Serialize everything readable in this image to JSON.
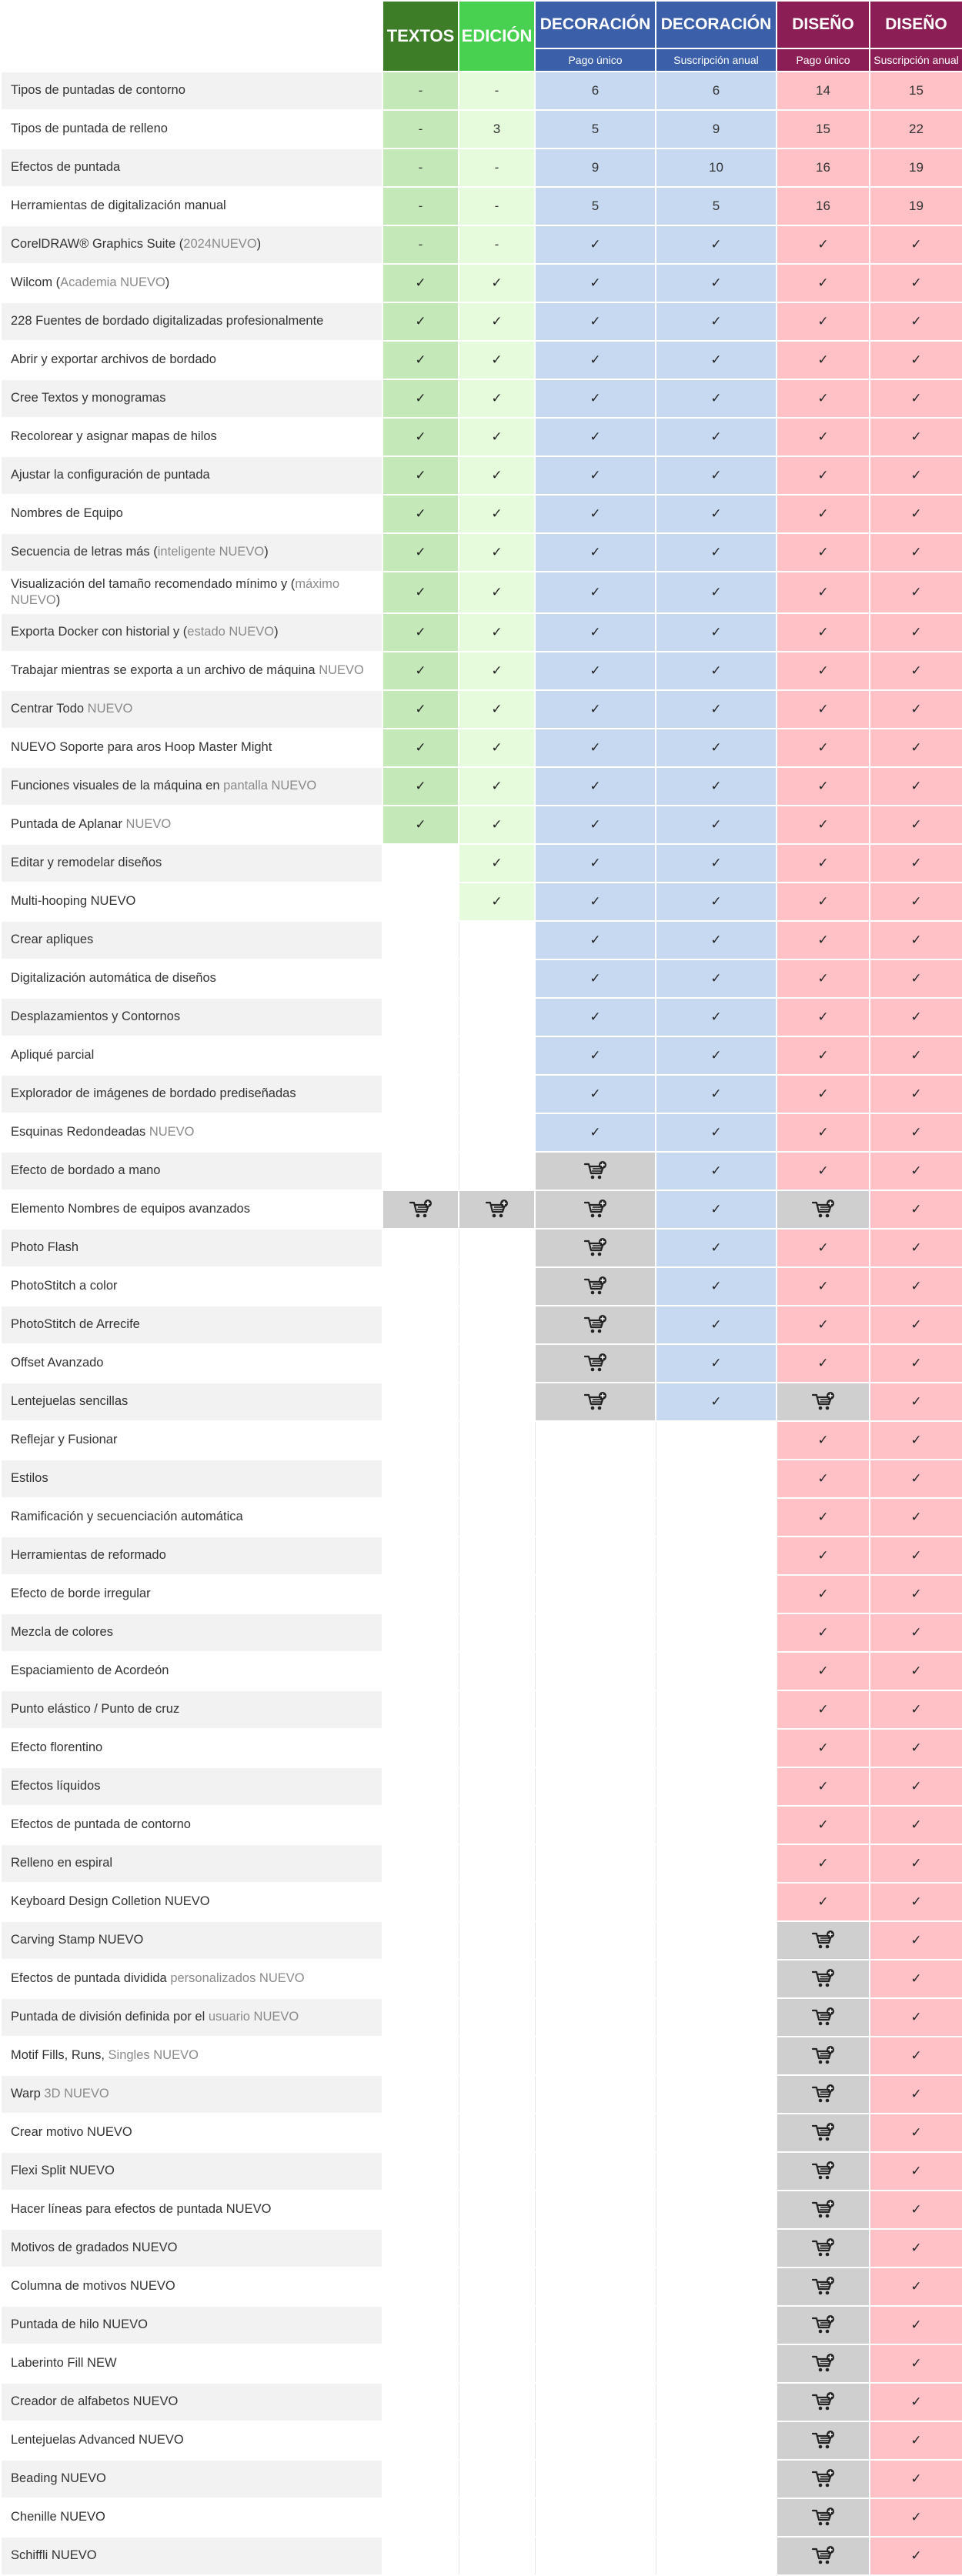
{
  "headers": [
    {
      "title": "TEXTOS",
      "subtitle": ""
    },
    {
      "title": "EDICIÓN",
      "subtitle": ""
    },
    {
      "title": "DECORACIÓN",
      "subtitle": "Pago único"
    },
    {
      "title": "DECORACIÓN",
      "subtitle": "Suscripción anual"
    },
    {
      "title": "DISEÑO",
      "subtitle": "Pago único"
    },
    {
      "title": "DISEÑO",
      "subtitle": "Suscripción anual"
    }
  ],
  "rows": [
    {
      "feature": [
        {
          "t": "Tipos de puntadas de contorno"
        }
      ],
      "cells": [
        "-",
        "-",
        "6",
        "6",
        "14",
        "15"
      ]
    },
    {
      "feature": [
        {
          "t": "Tipos de puntada de relleno"
        }
      ],
      "cells": [
        "-",
        "3",
        "5",
        "9",
        "15",
        "22"
      ]
    },
    {
      "feature": [
        {
          "t": "Efectos de puntada"
        }
      ],
      "cells": [
        "-",
        "-",
        "9",
        "10",
        "16",
        "19"
      ]
    },
    {
      "feature": [
        {
          "t": "Herramientas de digitalización manual"
        }
      ],
      "cells": [
        "-",
        "-",
        "5",
        "5",
        "16",
        "19"
      ]
    },
    {
      "feature": [
        {
          "t": "CorelDRAW® Graphics Suite ("
        },
        {
          "t": "2024NUEVO",
          "muted": true
        },
        {
          "t": ")"
        }
      ],
      "cells": [
        "-",
        "-",
        "check",
        "check",
        "check",
        "check"
      ]
    },
    {
      "feature": [
        {
          "t": "Wilcom ("
        },
        {
          "t": "Academia NUEVO",
          "muted": true
        },
        {
          "t": ")"
        }
      ],
      "cells": [
        "check",
        "check",
        "check",
        "check",
        "check",
        "check"
      ]
    },
    {
      "feature": [
        {
          "t": "228 Fuentes de bordado digitalizadas profesionalmente"
        }
      ],
      "cells": [
        "check",
        "check",
        "check",
        "check",
        "check",
        "check"
      ]
    },
    {
      "feature": [
        {
          "t": "Abrir y exportar archivos de bordado"
        }
      ],
      "cells": [
        "check",
        "check",
        "check",
        "check",
        "check",
        "check"
      ]
    },
    {
      "feature": [
        {
          "t": "Cree Textos y monogramas"
        }
      ],
      "cells": [
        "check",
        "check",
        "check",
        "check",
        "check",
        "check"
      ]
    },
    {
      "feature": [
        {
          "t": "Recolorear y asignar mapas de hilos"
        }
      ],
      "cells": [
        "check",
        "check",
        "check",
        "check",
        "check",
        "check"
      ]
    },
    {
      "feature": [
        {
          "t": "Ajustar la configuración de puntada"
        }
      ],
      "cells": [
        "check",
        "check",
        "check",
        "check",
        "check",
        "check"
      ]
    },
    {
      "feature": [
        {
          "t": "Nombres de Equipo"
        }
      ],
      "cells": [
        "check",
        "check",
        "check",
        "check",
        "check",
        "check"
      ]
    },
    {
      "feature": [
        {
          "t": "Secuencia de letras más ("
        },
        {
          "t": "inteligente NUEVO",
          "muted": true
        },
        {
          "t": ")"
        }
      ],
      "cells": [
        "check",
        "check",
        "check",
        "check",
        "check",
        "check"
      ]
    },
    {
      "feature": [
        {
          "t": "Visualización del tamaño recomendado mínimo y ("
        },
        {
          "t": "máximo NUEVO",
          "muted": true
        },
        {
          "t": ")"
        }
      ],
      "cells": [
        "check",
        "check",
        "check",
        "check",
        "check",
        "check"
      ],
      "tall": true
    },
    {
      "feature": [
        {
          "t": "Exporta Docker con historial y ("
        },
        {
          "t": "estado NUEVO",
          "muted": true
        },
        {
          "t": ")"
        }
      ],
      "cells": [
        "check",
        "check",
        "check",
        "check",
        "check",
        "check"
      ]
    },
    {
      "feature": [
        {
          "t": "Trabajar mientras se exporta a un archivo de máquina "
        },
        {
          "t": "NUEVO",
          "muted": true
        }
      ],
      "cells": [
        "check",
        "check",
        "check",
        "check",
        "check",
        "check"
      ]
    },
    {
      "feature": [
        {
          "t": "Centrar Todo "
        },
        {
          "t": "NUEVO",
          "muted": true
        }
      ],
      "cells": [
        "check",
        "check",
        "check",
        "check",
        "check",
        "check"
      ]
    },
    {
      "feature": [
        {
          "t": "NUEVO Soporte para aros Hoop Master Might"
        }
      ],
      "cells": [
        "check",
        "check",
        "check",
        "check",
        "check",
        "check"
      ]
    },
    {
      "feature": [
        {
          "t": "Funciones visuales de la máquina en "
        },
        {
          "t": "pantalla NUEVO",
          "muted": true
        }
      ],
      "cells": [
        "check",
        "check",
        "check",
        "check",
        "check",
        "check"
      ]
    },
    {
      "feature": [
        {
          "t": "Puntada de Aplanar "
        },
        {
          "t": "NUEVO",
          "muted": true
        }
      ],
      "cells": [
        "check",
        "check",
        "check",
        "check",
        "check",
        "check"
      ]
    },
    {
      "feature": [
        {
          "t": "Editar y remodelar diseños"
        }
      ],
      "cells": [
        "",
        "check",
        "check",
        "check",
        "check",
        "check"
      ]
    },
    {
      "feature": [
        {
          "t": "Multi-hooping NUEVO"
        }
      ],
      "cells": [
        "",
        "check",
        "check",
        "check",
        "check",
        "check"
      ]
    },
    {
      "feature": [
        {
          "t": "Crear apliques"
        }
      ],
      "cells": [
        "",
        "",
        "check",
        "check",
        "check",
        "check"
      ]
    },
    {
      "feature": [
        {
          "t": "Digitalización automática de diseños"
        }
      ],
      "cells": [
        "",
        "",
        "check",
        "check",
        "check",
        "check"
      ]
    },
    {
      "feature": [
        {
          "t": "Desplazamientos y Contornos"
        }
      ],
      "cells": [
        "",
        "",
        "check",
        "check",
        "check",
        "check"
      ]
    },
    {
      "feature": [
        {
          "t": "Apliqué parcial"
        }
      ],
      "cells": [
        "",
        "",
        "check",
        "check",
        "check",
        "check"
      ]
    },
    {
      "feature": [
        {
          "t": "Explorador de imágenes de bordado prediseñadas"
        }
      ],
      "cells": [
        "",
        "",
        "check",
        "check",
        "check",
        "check"
      ]
    },
    {
      "feature": [
        {
          "t": "Esquinas Redondeadas "
        },
        {
          "t": "NUEVO",
          "muted": true
        }
      ],
      "cells": [
        "",
        "",
        "check",
        "check",
        "check",
        "check"
      ]
    },
    {
      "feature": [
        {
          "t": "Efecto de bordado a mano"
        }
      ],
      "cells": [
        "",
        "",
        "cart",
        "check",
        "check",
        "check"
      ]
    },
    {
      "feature": [
        {
          "t": "Elemento Nombres de equipos avanzados"
        }
      ],
      "cells": [
        "cart",
        "cart",
        "cart",
        "check",
        "cart",
        "check"
      ]
    },
    {
      "feature": [
        {
          "t": "Photo Flash"
        }
      ],
      "cells": [
        "",
        "",
        "cart",
        "check",
        "check",
        "check"
      ]
    },
    {
      "feature": [
        {
          "t": "PhotoStitch a color"
        }
      ],
      "cells": [
        "",
        "",
        "cart",
        "check",
        "check",
        "check"
      ]
    },
    {
      "feature": [
        {
          "t": "PhotoStitch de Arrecife"
        }
      ],
      "cells": [
        "",
        "",
        "cart",
        "check",
        "check",
        "check"
      ]
    },
    {
      "feature": [
        {
          "t": "Offset Avanzado"
        }
      ],
      "cells": [
        "",
        "",
        "cart",
        "check",
        "check",
        "check"
      ]
    },
    {
      "feature": [
        {
          "t": "Lentejuelas sencillas"
        }
      ],
      "cells": [
        "",
        "",
        "cart",
        "check",
        "cart",
        "check"
      ]
    },
    {
      "feature": [
        {
          "t": "Reflejar y Fusionar"
        }
      ],
      "cells": [
        "",
        "",
        "",
        "",
        "check",
        "check"
      ]
    },
    {
      "feature": [
        {
          "t": "Estilos"
        }
      ],
      "cells": [
        "",
        "",
        "",
        "",
        "check",
        "check"
      ]
    },
    {
      "feature": [
        {
          "t": "Ramificación y secuenciación automática"
        }
      ],
      "cells": [
        "",
        "",
        "",
        "",
        "check",
        "check"
      ]
    },
    {
      "feature": [
        {
          "t": "Herramientas de reformado"
        }
      ],
      "cells": [
        "",
        "",
        "",
        "",
        "check",
        "check"
      ]
    },
    {
      "feature": [
        {
          "t": "Efecto de borde irregular"
        }
      ],
      "cells": [
        "",
        "",
        "",
        "",
        "check",
        "check"
      ]
    },
    {
      "feature": [
        {
          "t": "Mezcla de colores"
        }
      ],
      "cells": [
        "",
        "",
        "",
        "",
        "check",
        "check"
      ]
    },
    {
      "feature": [
        {
          "t": "Espaciamiento de Acordeón"
        }
      ],
      "cells": [
        "",
        "",
        "",
        "",
        "check",
        "check"
      ]
    },
    {
      "feature": [
        {
          "t": "Punto elástico / Punto de cruz"
        }
      ],
      "cells": [
        "",
        "",
        "",
        "",
        "check",
        "check"
      ]
    },
    {
      "feature": [
        {
          "t": "Efecto florentino"
        }
      ],
      "cells": [
        "",
        "",
        "",
        "",
        "check",
        "check"
      ]
    },
    {
      "feature": [
        {
          "t": "Efectos líquidos"
        }
      ],
      "cells": [
        "",
        "",
        "",
        "",
        "check",
        "check"
      ]
    },
    {
      "feature": [
        {
          "t": "Efectos de puntada de contorno"
        }
      ],
      "cells": [
        "",
        "",
        "",
        "",
        "check",
        "check"
      ]
    },
    {
      "feature": [
        {
          "t": "Relleno en espiral"
        }
      ],
      "cells": [
        "",
        "",
        "",
        "",
        "check",
        "check"
      ]
    },
    {
      "feature": [
        {
          "t": "Keyboard Design Colletion NUEVO"
        }
      ],
      "cells": [
        "",
        "",
        "",
        "",
        "check",
        "check"
      ]
    },
    {
      "feature": [
        {
          "t": "Carving Stamp NUEVO"
        }
      ],
      "cells": [
        "",
        "",
        "",
        "",
        "cart",
        "check"
      ]
    },
    {
      "feature": [
        {
          "t": "Efectos de puntada dividida "
        },
        {
          "t": "personalizados NUEVO",
          "muted": true
        }
      ],
      "cells": [
        "",
        "",
        "",
        "",
        "cart",
        "check"
      ]
    },
    {
      "feature": [
        {
          "t": "Puntada de división definida por el "
        },
        {
          "t": "usuario NUEVO",
          "muted": true
        }
      ],
      "cells": [
        "",
        "",
        "",
        "",
        "cart",
        "check"
      ]
    },
    {
      "feature": [
        {
          "t": "Motif Fills, Runs, "
        },
        {
          "t": "Singles NUEVO",
          "muted": true
        }
      ],
      "cells": [
        "",
        "",
        "",
        "",
        "cart",
        "check"
      ]
    },
    {
      "feature": [
        {
          "t": "Warp "
        },
        {
          "t": "3D NUEVO",
          "muted": true
        }
      ],
      "cells": [
        "",
        "",
        "",
        "",
        "cart",
        "check"
      ]
    },
    {
      "feature": [
        {
          "t": "Crear motivo NUEVO"
        }
      ],
      "cells": [
        "",
        "",
        "",
        "",
        "cart",
        "check"
      ]
    },
    {
      "feature": [
        {
          "t": "Flexi Split NUEVO"
        }
      ],
      "cells": [
        "",
        "",
        "",
        "",
        "cart",
        "check"
      ]
    },
    {
      "feature": [
        {
          "t": "Hacer líneas para efectos de puntada NUEVO"
        }
      ],
      "cells": [
        "",
        "",
        "",
        "",
        "cart",
        "check"
      ]
    },
    {
      "feature": [
        {
          "t": "Motivos de gradados NUEVO"
        }
      ],
      "cells": [
        "",
        "",
        "",
        "",
        "cart",
        "check"
      ]
    },
    {
      "feature": [
        {
          "t": "Columna de motivos NUEVO"
        }
      ],
      "cells": [
        "",
        "",
        "",
        "",
        "cart",
        "check"
      ]
    },
    {
      "feature": [
        {
          "t": "Puntada de hilo NUEVO"
        }
      ],
      "cells": [
        "",
        "",
        "",
        "",
        "cart",
        "check"
      ]
    },
    {
      "feature": [
        {
          "t": "Laberinto Fill NEW"
        }
      ],
      "cells": [
        "",
        "",
        "",
        "",
        "cart",
        "check"
      ]
    },
    {
      "feature": [
        {
          "t": "Creador de alfabetos NUEVO"
        }
      ],
      "cells": [
        "",
        "",
        "",
        "",
        "cart",
        "check"
      ]
    },
    {
      "feature": [
        {
          "t": "Lentejuelas Advanced NUEVO"
        }
      ],
      "cells": [
        "",
        "",
        "",
        "",
        "cart",
        "check"
      ]
    },
    {
      "feature": [
        {
          "t": "Beading NUEVO"
        }
      ],
      "cells": [
        "",
        "",
        "",
        "",
        "cart",
        "check"
      ]
    },
    {
      "feature": [
        {
          "t": "Chenille NUEVO"
        }
      ],
      "cells": [
        "",
        "",
        "",
        "",
        "cart",
        "check"
      ]
    },
    {
      "feature": [
        {
          "t": "Schiffli NUEVO"
        }
      ],
      "cells": [
        "",
        "",
        "",
        "",
        "cart",
        "check"
      ]
    }
  ],
  "glyphs": {
    "check": "✓"
  },
  "icons": {
    "check": "check-icon",
    "cart": "cart-add-icon"
  }
}
